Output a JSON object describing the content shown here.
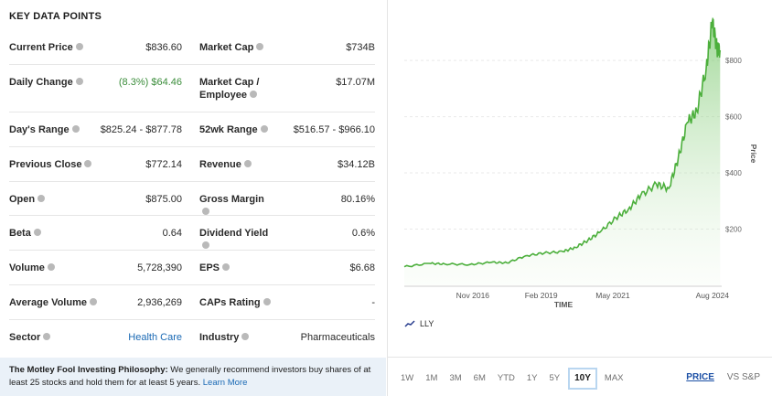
{
  "key_data": {
    "title": "KEY DATA POINTS",
    "rows": [
      [
        {
          "label": "Current Price",
          "value": "$836.60"
        },
        {
          "label": "Market Cap",
          "value": "$734B"
        }
      ],
      [
        {
          "label": "Daily Change",
          "value": "(8.3%) $64.46"
        },
        {
          "label": "Market Cap / Employee",
          "value": "$17.07M"
        }
      ],
      [
        {
          "label": "Day's Range",
          "value": "$825.24 - $877.78"
        },
        {
          "label": "52wk Range",
          "value": "$516.57 - $966.10"
        }
      ],
      [
        {
          "label": "Previous Close",
          "value": "$772.14"
        },
        {
          "label": "Revenue",
          "value": "$34.12B"
        }
      ],
      [
        {
          "label": "Open",
          "value": "$875.00"
        },
        {
          "label": "Gross Margin",
          "value": "80.16%"
        }
      ],
      [
        {
          "label": "Beta",
          "value": "0.64"
        },
        {
          "label": "Dividend Yield",
          "value": "0.6%"
        }
      ],
      [
        {
          "label": "Volume",
          "value": "5,728,390"
        },
        {
          "label": "EPS",
          "value": "$6.68"
        }
      ],
      [
        {
          "label": "Average Volume",
          "value": "2,936,269"
        },
        {
          "label": "CAPs Rating",
          "value": "-"
        }
      ],
      [
        {
          "label": "Sector",
          "value": "Health Care"
        },
        {
          "label": "Industry",
          "value": "Pharmaceuticals"
        }
      ]
    ]
  },
  "philosophy": {
    "heading": "The Motley Fool Investing Philosophy:",
    "text": " We generally recommend investors buy shares of at least 25 stocks and hold them for at least 5 years. ",
    "link": "Learn More"
  },
  "chart": {
    "legend": "LLY",
    "xlabel": "TIME",
    "ylabel": "Price",
    "x_ticks": [
      "Nov 2016",
      "Feb 2019",
      "May 2021",
      "Aug 2024"
    ],
    "y_ticks": [
      "$200",
      "$400",
      "$600",
      "$800"
    ],
    "ranges": [
      "1W",
      "1M",
      "3M",
      "6M",
      "YTD",
      "1Y",
      "5Y",
      "10Y",
      "MAX"
    ],
    "active_range": "10Y",
    "modes": [
      "PRICE",
      "VS S&P"
    ],
    "active_mode": "PRICE",
    "accent": "#4caf3c"
  },
  "chart_data": {
    "type": "area",
    "series": [
      {
        "name": "LLY",
        "x": [
          2014.7,
          2015.5,
          2016.0,
          2016.8,
          2017.5,
          2018.0,
          2018.6,
          2019.2,
          2019.8,
          2020.2,
          2020.6,
          2021.0,
          2021.5,
          2021.9,
          2022.3,
          2022.8,
          2023.2,
          2023.5,
          2023.8,
          2024.1,
          2024.4,
          2024.6,
          2024.75,
          2024.85
        ],
        "y": [
          66,
          78,
          76,
          74,
          82,
          80,
          105,
          115,
          120,
          135,
          160,
          190,
          240,
          270,
          320,
          360,
          345,
          450,
          580,
          620,
          770,
          940,
          840,
          836
        ]
      }
    ],
    "ylabel": "Price",
    "xlabel": "TIME",
    "ylim": [
      0,
      950
    ],
    "grid": true
  }
}
